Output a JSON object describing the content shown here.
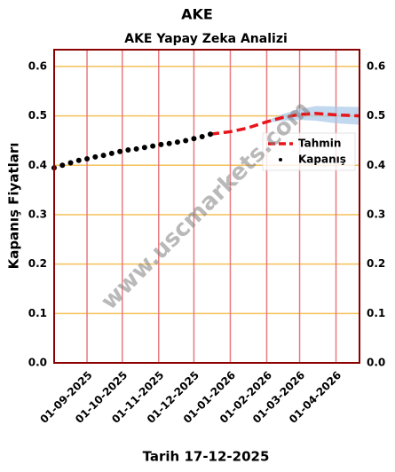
{
  "chart_data": {
    "type": "line",
    "title": "AKE",
    "subtitle": "AKE Yapay Zeka Analizi",
    "y_label": "Kapanış Fiyatları",
    "x_label": "Tarih 17-12-2025",
    "watermark": "www.uscmarkets.com",
    "xlim": [
      "2025-08-04",
      "2026-04-21"
    ],
    "xticks": [
      {
        "value": "2025-09-01",
        "label": "01-09-2025"
      },
      {
        "value": "2025-10-01",
        "label": "01-10-2025"
      },
      {
        "value": "2025-11-01",
        "label": "01-11-2025"
      },
      {
        "value": "2025-12-01",
        "label": "01-12-2025"
      },
      {
        "value": "2026-01-01",
        "label": "01-01-2026"
      },
      {
        "value": "2026-02-01",
        "label": "01-02-2026"
      },
      {
        "value": "2026-03-01",
        "label": "01-03-2026"
      },
      {
        "value": "2026-04-01",
        "label": "01-04-2026"
      }
    ],
    "ylim": [
      0,
      0.634
    ],
    "yticks": [
      {
        "value": 0,
        "label": "0.0"
      },
      0.1,
      0.2,
      0.3,
      0.4,
      0.5,
      0.6
    ],
    "grid": true,
    "legend": "center right",
    "band": {
      "color": "#a8c8e8",
      "x": [
        "2026-02-01",
        "2026-02-15",
        "2026-03-01",
        "2026-03-15",
        "2026-04-01",
        "2026-04-21"
      ],
      "lower": [
        0.486,
        0.49,
        0.492,
        0.49,
        0.485,
        0.482
      ],
      "upper": [
        0.49,
        0.504,
        0.514,
        0.52,
        0.519,
        0.518
      ]
    },
    "series": [
      {
        "name": "Tahmin",
        "color": "#e8141a",
        "style": "dashed",
        "x": [
          "2025-12-15",
          "2026-01-01",
          "2026-01-15",
          "2026-02-01",
          "2026-02-15",
          "2026-03-01",
          "2026-03-15",
          "2026-04-01",
          "2026-04-21"
        ],
        "values": [
          0.463,
          0.468,
          0.475,
          0.488,
          0.497,
          0.503,
          0.505,
          0.502,
          0.5
        ]
      },
      {
        "name": "Kapanış",
        "color": "#000000",
        "style": "dots",
        "x": [
          "2025-08-04",
          "2025-08-11",
          "2025-08-18",
          "2025-08-25",
          "2025-09-01",
          "2025-09-08",
          "2025-09-15",
          "2025-09-22",
          "2025-09-29",
          "2025-10-06",
          "2025-10-13",
          "2025-10-20",
          "2025-10-27",
          "2025-11-03",
          "2025-11-10",
          "2025-11-17",
          "2025-11-24",
          "2025-12-01",
          "2025-12-08",
          "2025-12-15"
        ],
        "values": [
          0.395,
          0.4,
          0.405,
          0.41,
          0.413,
          0.417,
          0.42,
          0.424,
          0.428,
          0.431,
          0.433,
          0.436,
          0.439,
          0.442,
          0.444,
          0.447,
          0.45,
          0.454,
          0.458,
          0.463
        ]
      }
    ]
  }
}
